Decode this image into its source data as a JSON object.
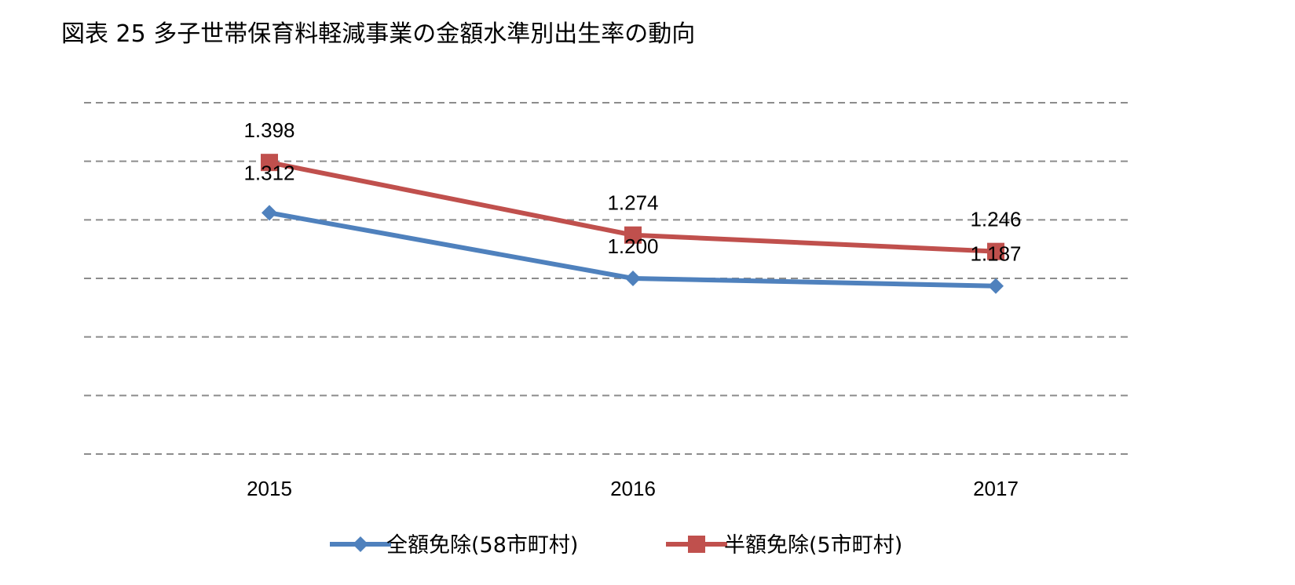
{
  "title": "図表 25 多子世帯保育料軽減事業の金額水準別出生率の動向",
  "chart_data": {
    "type": "line",
    "x": [
      "2015",
      "2016",
      "2017"
    ],
    "ylim": [
      0.9,
      1.5
    ],
    "grid": true,
    "legend_position": "bottom",
    "series": [
      {
        "name": "全額免除(58市町村)",
        "values": [
          1.312,
          1.2,
          1.187
        ],
        "labels": [
          "1.312",
          "1.200",
          "1.187"
        ],
        "color": "#4f81bd",
        "marker": "diamond"
      },
      {
        "name": "半額免除(5市町村)",
        "values": [
          1.398,
          1.274,
          1.246
        ],
        "labels": [
          "1.398",
          "1.274",
          "1.246"
        ],
        "color": "#c0504d",
        "marker": "square"
      }
    ]
  }
}
